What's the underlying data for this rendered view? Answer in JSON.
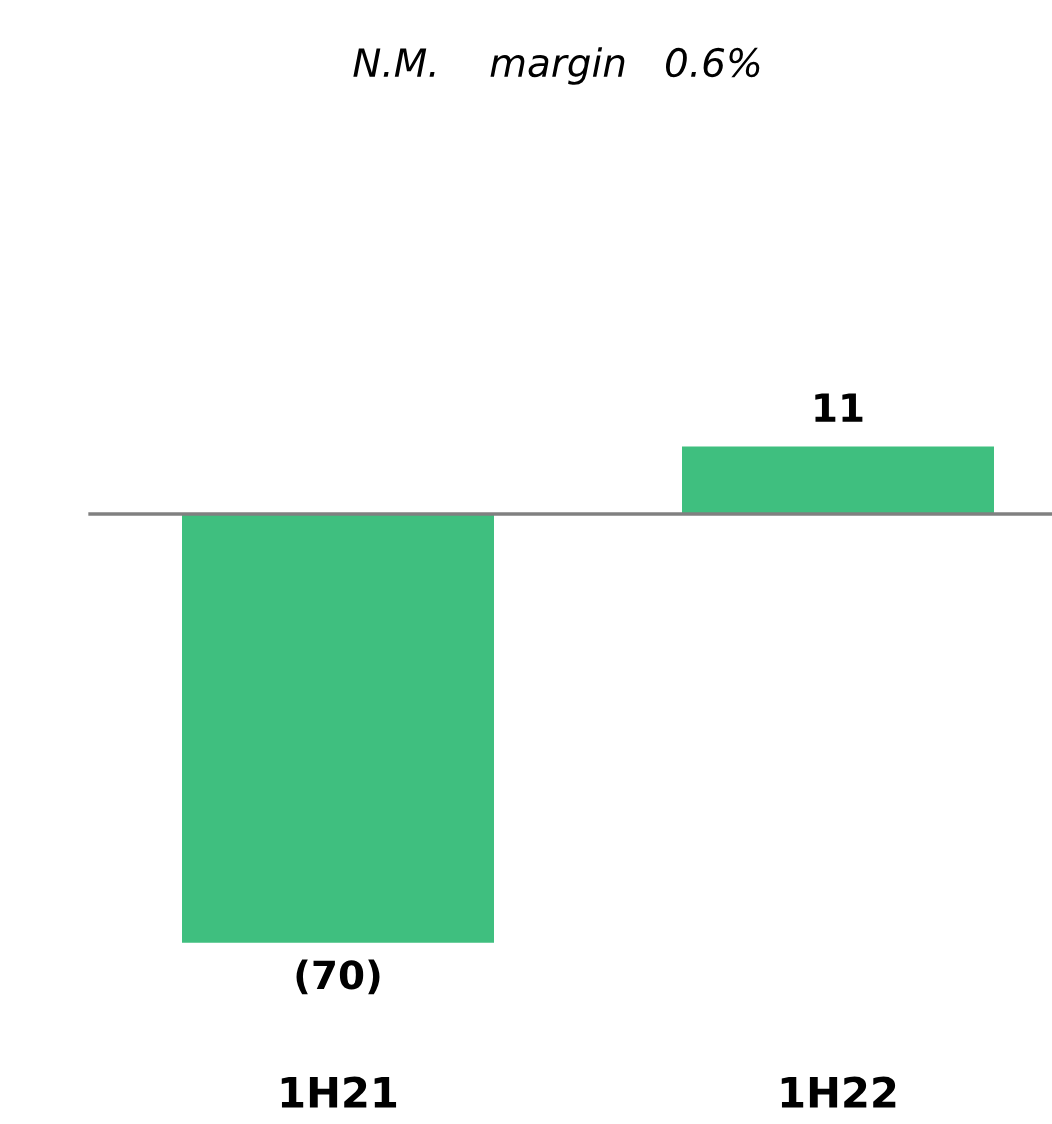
{
  "chart_data": {
    "type": "bar",
    "annotations": [
      "N.M.    margin   0.6%"
    ],
    "categories": [
      "1H21",
      "1H22"
    ],
    "values": [
      -70,
      11
    ],
    "value_labels": [
      "(70)",
      "11"
    ],
    "color": "#3fbf7f"
  }
}
